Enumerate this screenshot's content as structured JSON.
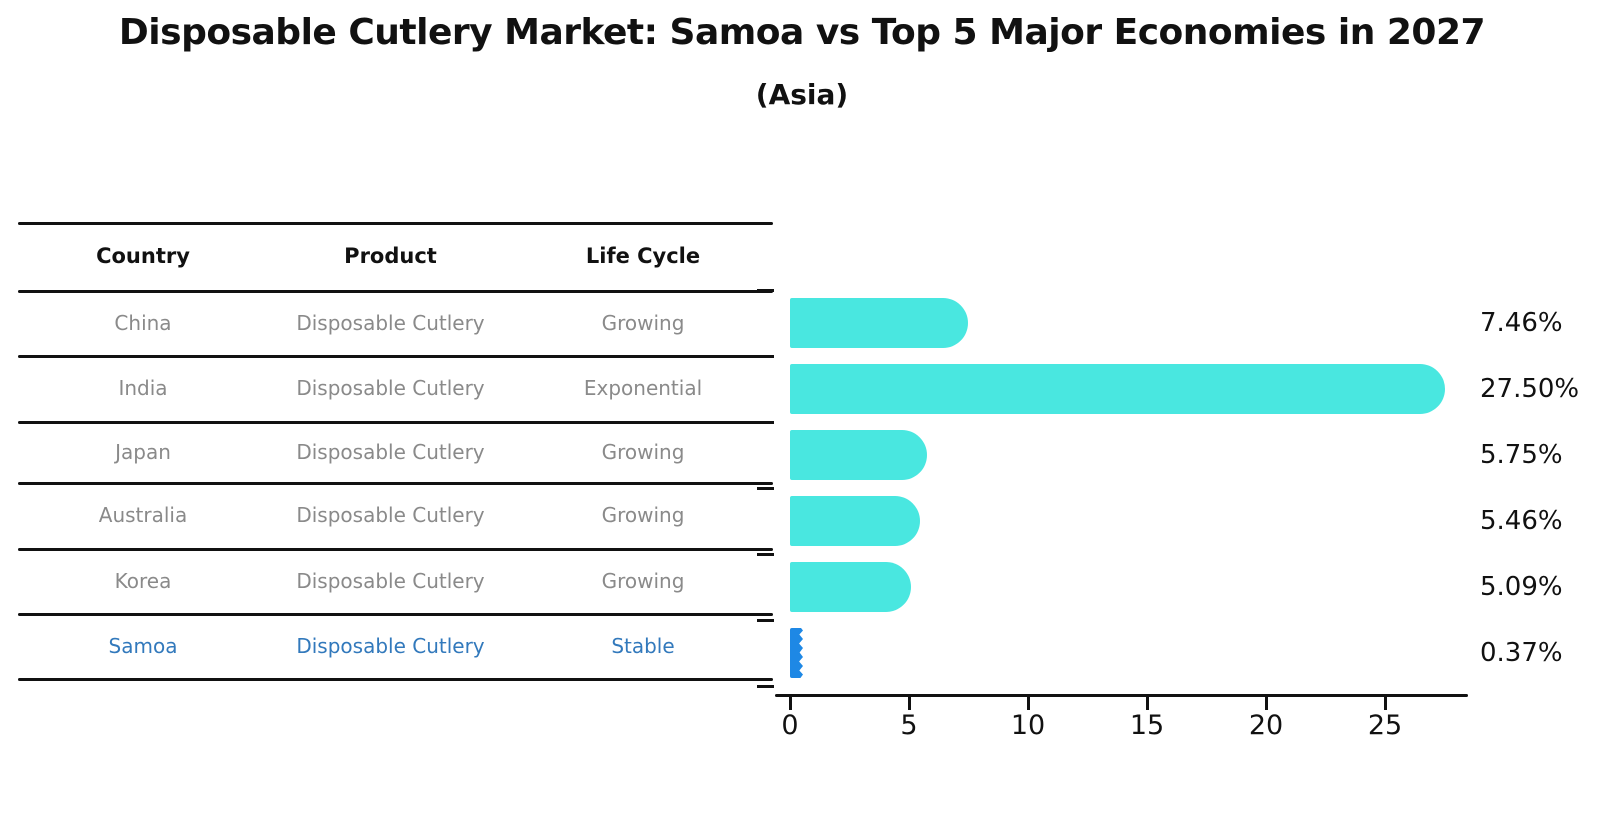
{
  "header": {
    "title": "Disposable Cutlery Market: Samoa vs Top 5 Major Economies in 2027",
    "subtitle": "(Asia)"
  },
  "table": {
    "columns": [
      "Country",
      "Product",
      "Life Cycle"
    ],
    "rows": [
      {
        "country": "China",
        "product": "Disposable Cutlery",
        "life_cycle": "Growing",
        "highlight": false
      },
      {
        "country": "India",
        "product": "Disposable Cutlery",
        "life_cycle": "Exponential",
        "highlight": false
      },
      {
        "country": "Japan",
        "product": "Disposable Cutlery",
        "life_cycle": "Growing",
        "highlight": false
      },
      {
        "country": "Australia",
        "product": "Disposable Cutlery",
        "life_cycle": "Growing",
        "highlight": false
      },
      {
        "country": "Korea",
        "product": "Disposable Cutlery",
        "life_cycle": "Growing",
        "highlight": false
      },
      {
        "country": "Samoa",
        "product": "Disposable Cutlery",
        "life_cycle": "Stable",
        "highlight": true
      }
    ]
  },
  "chart_data": {
    "type": "bar",
    "orientation": "horizontal",
    "title": "Disposable Cutlery Market: Samoa vs Top 5 Major Economies in 2027",
    "subtitle": "(Asia)",
    "categories": [
      "China",
      "India",
      "Japan",
      "Australia",
      "Korea",
      "Samoa"
    ],
    "values": [
      7.46,
      27.5,
      5.75,
      5.46,
      5.09,
      0.37
    ],
    "value_labels": [
      "7.46%",
      "27.50%",
      "5.75%",
      "5.46%",
      "5.09%",
      "0.37%"
    ],
    "xlabel": "",
    "ylabel": "",
    "xlim": [
      0,
      28.8
    ],
    "x_ticks": [
      0,
      5,
      10,
      15,
      20,
      25
    ],
    "grid": false,
    "legend": null,
    "bar_color": "#49E7E0",
    "highlight_color": "#1E88E5",
    "highlight_index": 5
  },
  "colors": {
    "bar": "#49E7E0",
    "highlight_bar": "#1E88E5",
    "highlight_text": "#3279BC",
    "table_text": "#8A8A8A",
    "heading_text": "#111111"
  }
}
